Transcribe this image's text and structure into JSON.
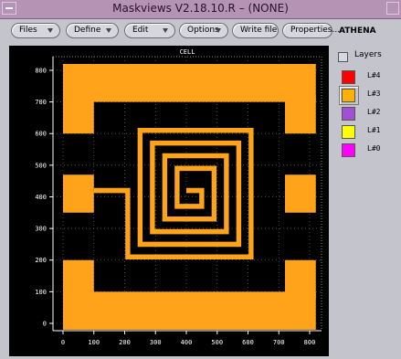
{
  "window": {
    "title": "Maskviews V2.18.10.R – (NONE)"
  },
  "toolbar": {
    "buttons": [
      "Files",
      "Define",
      "Edit",
      "Options",
      "Write file",
      "Properties..."
    ],
    "label": "ATHENA"
  },
  "plot": {
    "title": "CELL",
    "xticks": [
      0,
      100,
      200,
      300,
      400,
      500,
      600,
      700,
      800
    ],
    "yticks": [
      0,
      100,
      200,
      300,
      400,
      500,
      600,
      700,
      800
    ]
  },
  "layers": {
    "title": "Layers",
    "items": [
      {
        "name": "L#4",
        "color": "#ff0000"
      },
      {
        "name": "L#3",
        "color": "#ffb000"
      },
      {
        "name": "L#2",
        "color": "#a050d0"
      },
      {
        "name": "L#1",
        "color": "#ffff00"
      },
      {
        "name": "L#0",
        "color": "#ff00ff"
      }
    ]
  }
}
